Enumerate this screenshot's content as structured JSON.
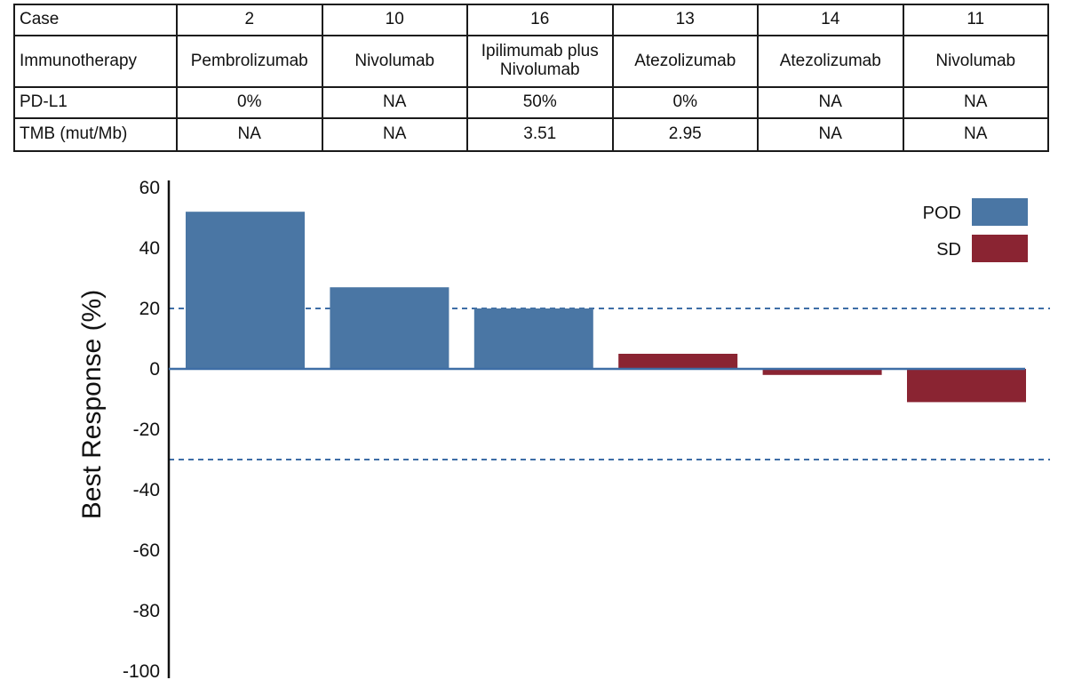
{
  "table": {
    "rows": [
      {
        "label": "Case",
        "values": [
          "2",
          "10",
          "16",
          "13",
          "14",
          "11"
        ]
      },
      {
        "label": "Immunotherapy",
        "values": [
          "Pembrolizumab",
          "Nivolumab",
          "Ipilimumab plus Nivolumab",
          "Atezolizumab",
          "Atezolizumab",
          "Nivolumab"
        ]
      },
      {
        "label": "PD-L1",
        "values": [
          "0%",
          "NA",
          "50%",
          "0%",
          "NA",
          "NA"
        ]
      },
      {
        "label": "TMB (mut/Mb)",
        "values": [
          "NA",
          "NA",
          "3.51",
          "2.95",
          "NA",
          "NA"
        ]
      }
    ]
  },
  "chart_data": {
    "type": "bar",
    "title": "",
    "xlabel": "",
    "ylabel": "Best Response (%)",
    "ylim": [
      -100,
      60
    ],
    "yticks": [
      60,
      40,
      20,
      0,
      -20,
      -40,
      -60,
      -80,
      -100
    ],
    "categories": [
      "2",
      "10",
      "16",
      "13",
      "14",
      "11"
    ],
    "values": [
      52,
      27,
      20,
      5,
      -2,
      -11
    ],
    "bar_response": [
      "POD",
      "POD",
      "POD",
      "SD",
      "SD",
      "SD"
    ],
    "reference_lines": [
      20,
      -30
    ],
    "grid": false,
    "legend": {
      "position": "top-right",
      "entries": [
        {
          "label": "POD",
          "color": "#4a76a4"
        },
        {
          "label": "SD",
          "color": "#8a2432"
        }
      ]
    },
    "colors": {
      "POD": "#4a76a4",
      "SD": "#8a2432",
      "reference_line": "#3e6ea6",
      "axis": "#111111"
    }
  }
}
